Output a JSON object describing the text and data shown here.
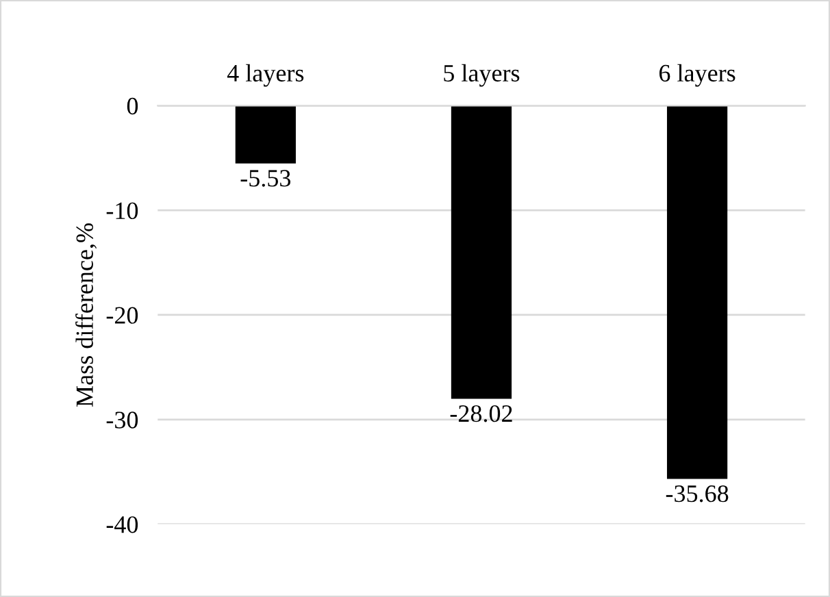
{
  "chart_data": {
    "type": "bar",
    "categories": [
      "4 layers",
      "5 layers",
      "6 layers"
    ],
    "values": [
      -5.53,
      -28.02,
      -35.68
    ],
    "color": "#000000",
    "ylabel": "Mass difference,%",
    "ylim": [
      -40,
      0
    ],
    "yticks": [
      -40,
      -30,
      -20,
      -10,
      0
    ],
    "grid": "y",
    "data_labels": true
  }
}
